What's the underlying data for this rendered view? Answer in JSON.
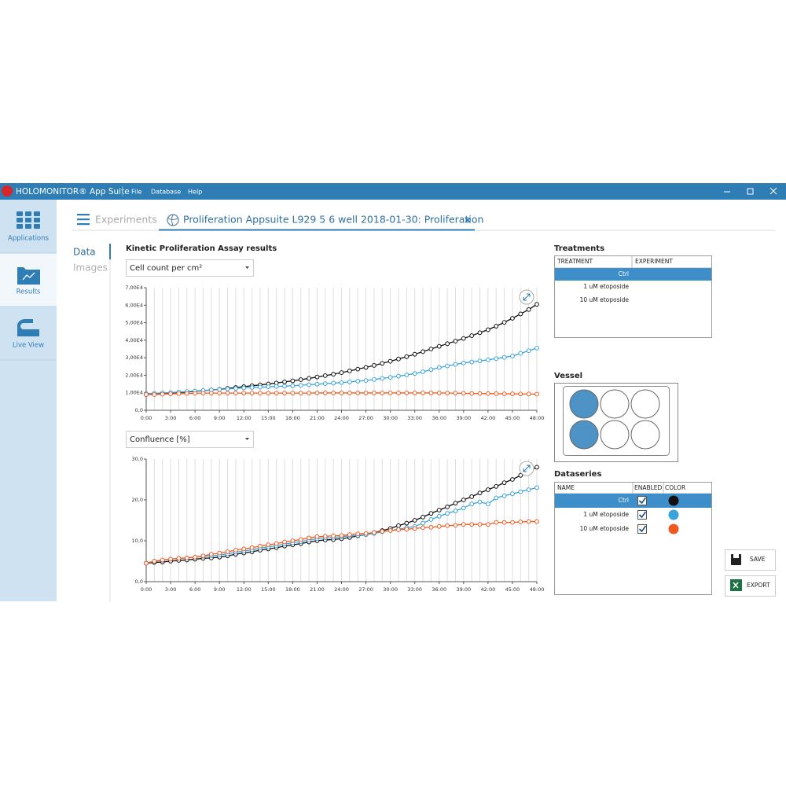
{
  "app": {
    "title": "HOLOMONITOR® App Suite",
    "menu": [
      "File",
      "Database",
      "Help"
    ]
  },
  "sidebar": [
    "Applications",
    "Results",
    "Live View"
  ],
  "tabs": {
    "experiments": "Experiments",
    "active": "Proliferation Appsuite L929 5 6 well 2018-01-30: Proliferation"
  },
  "views": [
    "Data",
    "Images"
  ],
  "title": "Kinetic Proliferation Assay results",
  "chart_data": [
    {
      "type": "line",
      "selector": "Cell count per cm²",
      "x": [
        0,
        1,
        2,
        3,
        4,
        5,
        6,
        7,
        8,
        9,
        10,
        11,
        12,
        13,
        14,
        15,
        16,
        17,
        18,
        19,
        20,
        21,
        22,
        23,
        24,
        25,
        26,
        27,
        28,
        29,
        30,
        31,
        32,
        33,
        34,
        35,
        36,
        37,
        38,
        39,
        40,
        41,
        42,
        43,
        44,
        45,
        46,
        47,
        48
      ],
      "xlim": [
        0,
        48
      ],
      "xticks": [
        {
          "value": 0,
          "label": "0:00"
        },
        {
          "value": 3,
          "label": "3:00"
        },
        {
          "value": 6,
          "label": "6:00"
        },
        {
          "value": 9,
          "label": "9:00"
        },
        {
          "value": 12,
          "label": "12:00"
        },
        {
          "value": 15,
          "label": "15:00"
        },
        {
          "value": 18,
          "label": "18:00"
        },
        {
          "value": 21,
          "label": "21:00"
        },
        {
          "value": 24,
          "label": "24:00"
        },
        {
          "value": 27,
          "label": "27:00"
        },
        {
          "value": 30,
          "label": "30:00"
        },
        {
          "value": 33,
          "label": "33:00"
        },
        {
          "value": 36,
          "label": "36:00"
        },
        {
          "value": 39,
          "label": "39:00"
        },
        {
          "value": 42,
          "label": "42:00"
        },
        {
          "value": 45,
          "label": "45:00"
        },
        {
          "value": 48,
          "label": "48:00"
        }
      ],
      "ylim": [
        0,
        70000
      ],
      "yticks": [
        {
          "value": 0,
          "label": "0,0"
        },
        {
          "value": 10000,
          "label": "1,00E4"
        },
        {
          "value": 20000,
          "label": "2,00E4"
        },
        {
          "value": 30000,
          "label": "3,00E4"
        },
        {
          "value": 40000,
          "label": "4,00E4"
        },
        {
          "value": 50000,
          "label": "5,00E4"
        },
        {
          "value": 60000,
          "label": "6,00E4"
        },
        {
          "value": 70000,
          "label": "7,00E4"
        }
      ],
      "grid": true,
      "series": [
        {
          "name": "Ctrl",
          "color": "#111111",
          "values": [
            9000,
            9200,
            9500,
            9800,
            10100,
            10400,
            10800,
            11200,
            11600,
            12000,
            12500,
            13000,
            13500,
            14000,
            14500,
            15000,
            15600,
            16200,
            16800,
            17500,
            18200,
            19000,
            19800,
            20600,
            21500,
            22500,
            23500,
            24500,
            25600,
            26800,
            28000,
            29300,
            30600,
            32000,
            33500,
            35000,
            36500,
            38000,
            39500,
            41000,
            42600,
            44300,
            46000,
            48000,
            50200,
            52500,
            55000,
            57500,
            60500
          ]
        },
        {
          "name": "1 uM etoposide",
          "color": "#3ba3dc",
          "values": [
            9500,
            9700,
            9900,
            10100,
            10400,
            10700,
            11000,
            11300,
            11600,
            11900,
            12200,
            12500,
            12800,
            13000,
            13200,
            13400,
            13600,
            13800,
            14000,
            14300,
            14600,
            14900,
            15200,
            15500,
            15800,
            16200,
            16600,
            17000,
            17600,
            18200,
            18800,
            19500,
            20200,
            21000,
            22000,
            23200,
            24400,
            25300,
            26200,
            27000,
            27600,
            28200,
            28800,
            29500,
            30200,
            31000,
            32500,
            34000,
            35500
          ]
        },
        {
          "name": "10 uM etoposide",
          "color": "#f05a22",
          "values": [
            9000,
            9000,
            9200,
            9400,
            9500,
            9600,
            9700,
            9800,
            9800,
            9800,
            9800,
            9800,
            9800,
            9800,
            9800,
            9800,
            9800,
            9800,
            9800,
            9800,
            9800,
            9900,
            9900,
            9900,
            9900,
            9900,
            9900,
            9900,
            9900,
            9900,
            9900,
            9900,
            9900,
            9900,
            9900,
            9900,
            9900,
            9800,
            9800,
            9700,
            9600,
            9600,
            9500,
            9500,
            9400,
            9400,
            9300,
            9300,
            9200
          ]
        }
      ]
    },
    {
      "type": "line",
      "selector": "Confluence [%]",
      "x": [
        0,
        1,
        2,
        3,
        4,
        5,
        6,
        7,
        8,
        9,
        10,
        11,
        12,
        13,
        14,
        15,
        16,
        17,
        18,
        19,
        20,
        21,
        22,
        23,
        24,
        25,
        26,
        27,
        28,
        29,
        30,
        31,
        32,
        33,
        34,
        35,
        36,
        37,
        38,
        39,
        40,
        41,
        42,
        43,
        44,
        45,
        46,
        47,
        48
      ],
      "xlim": [
        0,
        48
      ],
      "xticks": [
        {
          "value": 0,
          "label": "0:00"
        },
        {
          "value": 3,
          "label": "3:00"
        },
        {
          "value": 6,
          "label": "6:00"
        },
        {
          "value": 9,
          "label": "9:00"
        },
        {
          "value": 12,
          "label": "12:00"
        },
        {
          "value": 15,
          "label": "15:00"
        },
        {
          "value": 18,
          "label": "18:00"
        },
        {
          "value": 21,
          "label": "21:00"
        },
        {
          "value": 24,
          "label": "24:00"
        },
        {
          "value": 27,
          "label": "27:00"
        },
        {
          "value": 30,
          "label": "30:00"
        },
        {
          "value": 33,
          "label": "33:00"
        },
        {
          "value": 36,
          "label": "36:00"
        },
        {
          "value": 39,
          "label": "39:00"
        },
        {
          "value": 42,
          "label": "42:00"
        },
        {
          "value": 45,
          "label": "45:00"
        },
        {
          "value": 48,
          "label": "48:00"
        }
      ],
      "ylim": [
        0,
        30
      ],
      "yticks": [
        {
          "value": 0,
          "label": "0,0"
        },
        {
          "value": 10,
          "label": "10,0"
        },
        {
          "value": 20,
          "label": "20,0"
        },
        {
          "value": 30,
          "label": "30,0"
        }
      ],
      "grid": true,
      "series": [
        {
          "name": "Ctrl",
          "color": "#111111",
          "values": [
            4.5,
            4.7,
            4.8,
            5.0,
            5.2,
            5.3,
            5.5,
            5.7,
            5.8,
            6.0,
            6.3,
            6.7,
            7.0,
            7.3,
            7.7,
            8.0,
            8.3,
            8.7,
            9.0,
            9.3,
            9.7,
            10.0,
            10.2,
            10.3,
            10.5,
            10.8,
            11.2,
            11.5,
            12.0,
            12.5,
            13.0,
            13.7,
            14.3,
            15.0,
            15.8,
            16.7,
            17.5,
            18.3,
            19.2,
            20.0,
            20.8,
            21.7,
            22.5,
            23.3,
            24.2,
            25.0,
            26.0,
            27.0,
            28.0
          ]
        },
        {
          "name": "1 uM etoposide",
          "color": "#3ba3dc",
          "values": [
            4.5,
            5.0,
            5.2,
            5.5,
            5.7,
            5.8,
            6.0,
            6.2,
            6.3,
            6.5,
            6.8,
            7.2,
            7.5,
            7.8,
            8.2,
            8.5,
            8.8,
            9.2,
            9.5,
            9.8,
            10.2,
            10.5,
            10.7,
            10.8,
            11.0,
            11.2,
            11.3,
            11.5,
            11.8,
            12.2,
            12.5,
            12.8,
            13.2,
            13.5,
            14.3,
            15.2,
            16.0,
            16.7,
            17.3,
            18.0,
            19.0,
            19.5,
            19.0,
            20.5,
            21.0,
            21.5,
            22.0,
            22.5,
            23.0
          ]
        },
        {
          "name": "10 uM etoposide",
          "color": "#f05a22",
          "values": [
            4.5,
            5.0,
            5.3,
            5.5,
            5.7,
            5.8,
            6.0,
            6.3,
            6.7,
            7.0,
            7.3,
            7.7,
            8.0,
            8.3,
            8.7,
            9.0,
            9.3,
            9.7,
            10.0,
            10.3,
            10.7,
            11.0,
            11.1,
            11.2,
            11.3,
            11.5,
            11.7,
            11.8,
            12.0,
            12.3,
            12.5,
            12.7,
            12.8,
            13.0,
            13.2,
            13.3,
            13.5,
            13.7,
            13.8,
            14.0,
            14.0,
            14.0,
            14.0,
            14.5,
            14.5,
            14.5,
            14.6,
            14.7,
            14.7
          ]
        }
      ]
    }
  ],
  "treatments": {
    "title": "Treatments",
    "columns": [
      "TREATMENT",
      "EXPERIMENT"
    ],
    "rows": [
      "Ctrl",
      "1 uM etoposide",
      "10 uM etoposide"
    ]
  },
  "vessel": {
    "title": "Vessel"
  },
  "dataseries": {
    "title": "Dataseries",
    "columns": [
      "NAME",
      "ENABLED",
      "COLOR"
    ]
  },
  "buttons": [
    "SAVE",
    "EXPORT"
  ]
}
